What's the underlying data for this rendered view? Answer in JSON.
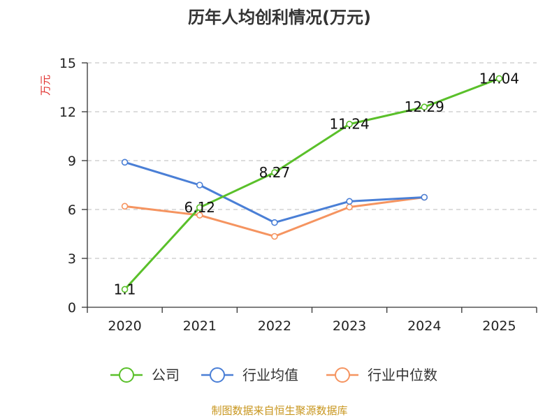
{
  "chart_data": {
    "type": "line",
    "title": "历年人均创利情况(万元)",
    "ylabel": "万元",
    "xlabel": "",
    "categories": [
      "2020",
      "2021",
      "2022",
      "2023",
      "2024",
      "2025"
    ],
    "ylim": [
      0,
      15
    ],
    "yticks": [
      0,
      3,
      6,
      9,
      12,
      15
    ],
    "grid": true,
    "legend_position": "bottom",
    "series": [
      {
        "name": "公司",
        "color": "#5ac02a",
        "values": [
          1.1,
          6.12,
          8.27,
          11.24,
          12.29,
          14.04
        ],
        "labels": [
          "1.1",
          "6.12",
          "8.27",
          "11.24",
          "12.29",
          "14.04"
        ]
      },
      {
        "name": "行业均值",
        "color": "#4a7fd6",
        "values": [
          8.9,
          7.5,
          5.2,
          6.5,
          6.75,
          null
        ]
      },
      {
        "name": "行业中位数",
        "color": "#f59460",
        "values": [
          6.2,
          5.65,
          4.35,
          6.15,
          6.75,
          null
        ]
      }
    ]
  },
  "source_text": "制图数据来自恒生聚源数据库",
  "colors": {
    "ylabel": "#e0302d",
    "source": "#c8961e",
    "axis": "#333333",
    "grid": "#bbbbbb"
  }
}
